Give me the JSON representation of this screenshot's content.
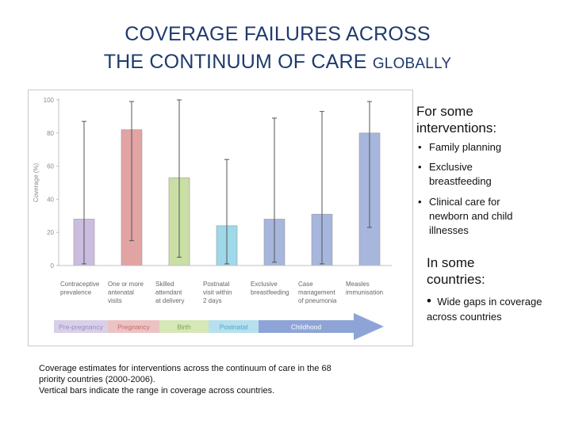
{
  "title": {
    "line1": "COVERAGE FAILURES ACROSS",
    "line2_main": "THE CONTINUUM OF CARE",
    "line2_small": "GLOBALLY"
  },
  "chart_data": {
    "type": "bar",
    "ylabel": "Coverage (%)",
    "ylim": [
      0,
      100
    ],
    "yticks": [
      0,
      20,
      40,
      60,
      80,
      100
    ],
    "grid": false,
    "categories": [
      [
        "Contraceptive",
        "prevalence"
      ],
      [
        "One or more",
        "antenatal",
        "visits"
      ],
      [
        "Skilled",
        "attendant",
        "at delivery"
      ],
      [
        "Postnatal",
        "visit within",
        "2 days"
      ],
      [
        "Exclusive",
        "breastfeeding"
      ],
      [
        "Case",
        "management",
        "of pneumonia"
      ],
      [
        "Measles",
        "immunisation"
      ]
    ],
    "values": [
      28,
      82,
      53,
      24,
      28,
      31,
      80
    ],
    "range_min": [
      1,
      15,
      5,
      1,
      2,
      1,
      23
    ],
    "range_max": [
      87,
      99,
      100,
      64,
      89,
      93,
      99
    ],
    "colors": [
      "#cbbddf",
      "#e2a3a3",
      "#c9dfa5",
      "#9ed8e9",
      "#a6b6dc",
      "#a6b6dc",
      "#a6b6dc"
    ],
    "stages": [
      {
        "label": "Pre-pregnancy",
        "color": "#d8d0e8",
        "text_color": "#9b8cc0"
      },
      {
        "label": "Pregnancy",
        "color": "#ecc3c3",
        "text_color": "#c66a6a"
      },
      {
        "label": "Birth",
        "color": "#d6e8b8",
        "text_color": "#7ea34a"
      },
      {
        "label": "Postnatal",
        "color": "#b6e0ee",
        "text_color": "#4aa9c8"
      },
      {
        "label": "Childhood",
        "color": "#8fa4d6",
        "text_color": "#ffffff"
      }
    ]
  },
  "caption": {
    "line1": "Coverage estimates for interventions across the continuum of care in the 68",
    "line2": "priority countries (2000-2006).",
    "line3": "Vertical bars indicate the range in coverage across countries."
  },
  "side": {
    "heading1_l1": "For some",
    "heading1_l2": "interventions:",
    "bullet_char": "•",
    "b1": "Family planning",
    "b2_l1": "Exclusive",
    "b2_l2": "breastfeeding",
    "b3_l1": "Clinical care for",
    "b3_l2": "newborn and child",
    "b3_l3": "illnesses",
    "heading2_l1": "In some",
    "heading2_l2": "countries:",
    "b4_l1": "Wide gaps in coverage",
    "b4_l2": "across countries"
  }
}
